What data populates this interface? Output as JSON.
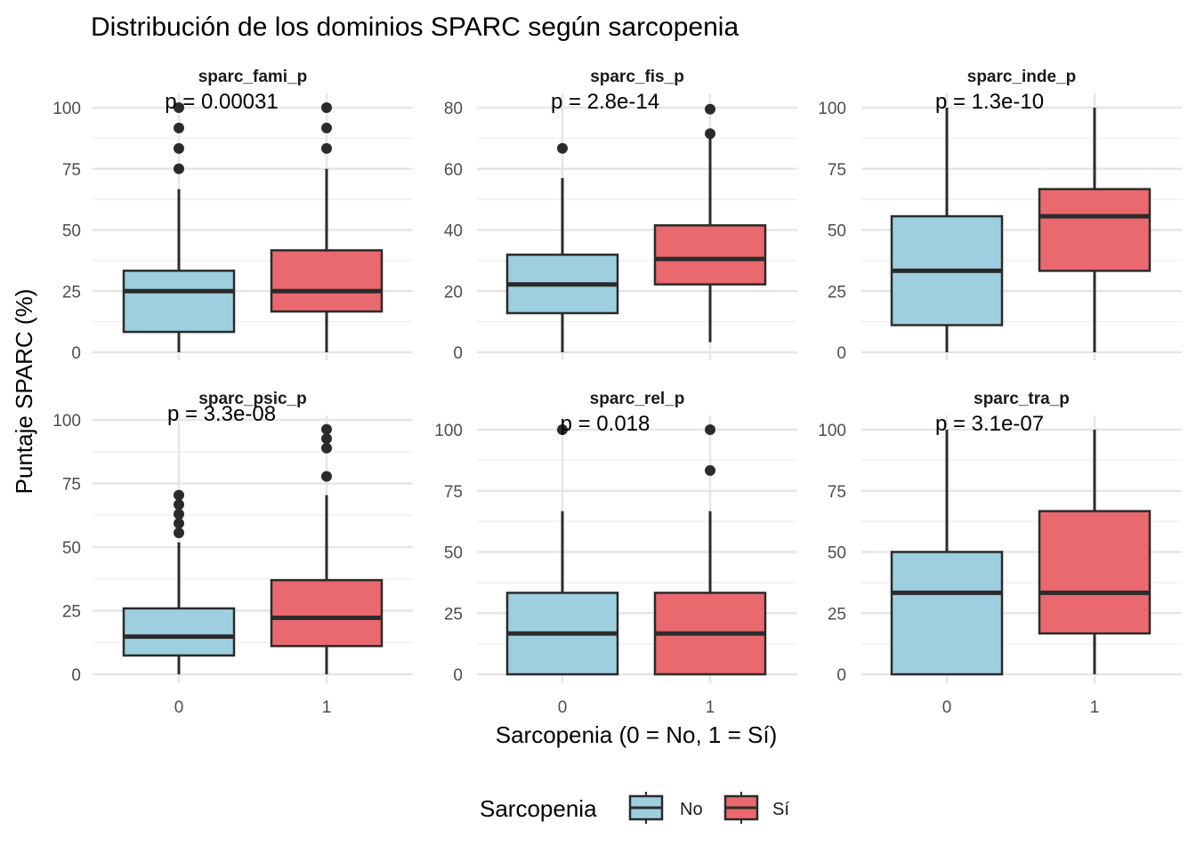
{
  "chart_data": {
    "type": "box",
    "title": "Distribución de los dominios SPARC según sarcopenia",
    "xlabel": "Sarcopenia (0 = No, 1 = Sí)",
    "ylabel": "Puntaje SPARC (%)",
    "categories": [
      "0",
      "1"
    ],
    "legend": {
      "title": "Sarcopenia",
      "placement": "bottom",
      "entries": [
        {
          "label": "No",
          "color": "#9ECFE0"
        },
        {
          "label": "Sí",
          "color": "#E9696E"
        }
      ]
    },
    "grid": true,
    "panels": [
      {
        "name": "sparc_fami_p",
        "p_label": "p = 0.00031",
        "ylim": [
          0,
          100
        ],
        "ticks": [
          0,
          25,
          50,
          75,
          100
        ],
        "groups": [
          {
            "x": "0",
            "lower": 0,
            "q1": 8.33,
            "median": 25,
            "q3": 33.33,
            "upper": 66.67,
            "outliers": [
              75,
              83.33,
              91.67,
              100
            ]
          },
          {
            "x": "1",
            "lower": 0,
            "q1": 16.67,
            "median": 25,
            "q3": 41.67,
            "upper": 75,
            "outliers": [
              83.33,
              91.67,
              100
            ]
          }
        ]
      },
      {
        "name": "sparc_fis_p",
        "p_label": "p = 2.8e-14",
        "ylim": [
          0,
          80
        ],
        "ticks": [
          0,
          20,
          40,
          60,
          80
        ],
        "groups": [
          {
            "x": "0",
            "lower": 0,
            "q1": 12.8,
            "median": 22.2,
            "q3": 31.9,
            "upper": 57,
            "outliers": [
              66.7
            ]
          },
          {
            "x": "1",
            "lower": 3.3,
            "q1": 22.2,
            "median": 30.5,
            "q3": 41.5,
            "upper": 71.5,
            "outliers": [
              71.5,
              79.5
            ]
          }
        ]
      },
      {
        "name": "sparc_inde_p",
        "p_label": "p = 1.3e-10",
        "ylim": [
          0,
          100
        ],
        "ticks": [
          0,
          25,
          50,
          75,
          100
        ],
        "groups": [
          {
            "x": "0",
            "lower": 0,
            "q1": 11.1,
            "median": 33.3,
            "q3": 55.6,
            "upper": 100,
            "outliers": []
          },
          {
            "x": "1",
            "lower": 0,
            "q1": 33.3,
            "median": 55.6,
            "q3": 66.7,
            "upper": 100,
            "outliers": []
          }
        ]
      },
      {
        "name": "sparc_psic_p",
        "p_label": "p = 3.3e-08",
        "ylim": [
          0,
          100
        ],
        "ticks": [
          0,
          25,
          50,
          75,
          100
        ],
        "groups": [
          {
            "x": "0",
            "lower": 0,
            "q1": 7.4,
            "median": 14.8,
            "q3": 25.9,
            "upper": 51.9,
            "outliers": [
              55.6,
              59.3,
              63,
              66.7,
              70.4
            ]
          },
          {
            "x": "1",
            "lower": 0,
            "q1": 11.1,
            "median": 22.2,
            "q3": 37,
            "upper": 70.4,
            "outliers": [
              77.8,
              88.9,
              92.6,
              96.3
            ]
          }
        ]
      },
      {
        "name": "sparc_rel_p",
        "p_label": "p = 0.018",
        "ylim": [
          0,
          100
        ],
        "ticks": [
          0,
          25,
          50,
          75,
          100
        ],
        "groups": [
          {
            "x": "0",
            "lower": 0,
            "q1": 0,
            "median": 16.7,
            "q3": 33.3,
            "upper": 66.7,
            "outliers": [
              100
            ]
          },
          {
            "x": "1",
            "lower": 0,
            "q1": 0,
            "median": 16.7,
            "q3": 33.3,
            "upper": 66.7,
            "outliers": [
              83.3,
              100
            ]
          }
        ]
      },
      {
        "name": "sparc_tra_p",
        "p_label": "p = 3.1e-07",
        "ylim": [
          0,
          100
        ],
        "ticks": [
          0,
          25,
          50,
          75,
          100
        ],
        "groups": [
          {
            "x": "0",
            "lower": 0,
            "q1": 0,
            "median": 33.3,
            "q3": 50,
            "upper": 100,
            "outliers": []
          },
          {
            "x": "1",
            "lower": 0,
            "q1": 16.7,
            "median": 33.3,
            "q3": 66.7,
            "upper": 100,
            "outliers": []
          }
        ]
      }
    ]
  }
}
